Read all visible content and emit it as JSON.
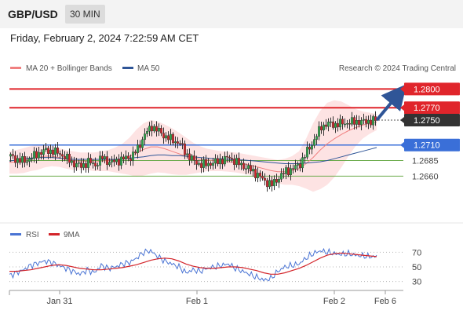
{
  "header": {
    "pair": "GBP/USD",
    "timeframe": "30 MIN",
    "datetime": "Friday, February 2, 2024 7:22:59 AM CET"
  },
  "legend": {
    "ma20_label": "MA 20 + Bollinger Bands",
    "ma50_label": "MA 50",
    "copyright": "Research © 2024 Trading Central",
    "rsi_label": "RSI",
    "ma9_label": "9MA"
  },
  "colors": {
    "resistance": "#e0252b",
    "current": "#333333",
    "support_major": "#3a6fd8",
    "support_minor": "#6aaa4a",
    "ma20": "#f08080",
    "ma50": "#2f5597",
    "band_fill": "#fde3e3",
    "candle_up": "#2ea84a",
    "candle_down": "#d3242a",
    "arrow": "#2f5597",
    "rsi": "#4a74d4",
    "rsi_ma": "#d3242a"
  },
  "chart_data": [
    {
      "type": "candlestick",
      "ylim": [
        1.2615,
        1.2822
      ],
      "x_labels": [
        "Jan 31",
        "Feb 1",
        "Feb 2",
        "Feb 6"
      ],
      "levels": [
        {
          "value": 1.28,
          "label": "1.2800",
          "kind": "resistance"
        },
        {
          "value": 1.277,
          "label": "1.2770",
          "kind": "resistance"
        },
        {
          "value": 1.275,
          "label": "1.2750",
          "kind": "current"
        },
        {
          "value": 1.271,
          "label": "1.2710",
          "kind": "support_major"
        },
        {
          "value": 1.2685,
          "label": "1.2685",
          "kind": "support_minor"
        },
        {
          "value": 1.266,
          "label": "1.2660",
          "kind": "support_minor"
        }
      ],
      "close_path": [
        1.2692,
        1.2686,
        1.2684,
        1.269,
        1.2697,
        1.2701,
        1.27,
        1.2696,
        1.2688,
        1.268,
        1.2676,
        1.2683,
        1.2678,
        1.269,
        1.2682,
        1.2684,
        1.2688,
        1.269,
        1.2704,
        1.2727,
        1.274,
        1.2732,
        1.2723,
        1.2718,
        1.2712,
        1.2694,
        1.2684,
        1.2678,
        1.268,
        1.2682,
        1.2686,
        1.269,
        1.2682,
        1.2676,
        1.267,
        1.2662,
        1.2652,
        1.2646,
        1.2658,
        1.2668,
        1.2672,
        1.268,
        1.27,
        1.2718,
        1.274,
        1.2744,
        1.2743,
        1.2745,
        1.2746,
        1.2748,
        1.2747,
        1.2749,
        1.275
      ],
      "ma20": [
        1.2682,
        1.2683,
        1.2685,
        1.2688,
        1.269,
        1.2692,
        1.2692,
        1.269,
        1.2687,
        1.2685,
        1.2684,
        1.2684,
        1.2683,
        1.2684,
        1.2685,
        1.2686,
        1.2688,
        1.2692,
        1.2697,
        1.2703,
        1.2707,
        1.2707,
        1.2704,
        1.27,
        1.2696,
        1.2692,
        1.2689,
        1.2687,
        1.2686,
        1.2685,
        1.2684,
        1.2683,
        1.2682,
        1.268,
        1.2678,
        1.2675,
        1.2672,
        1.2669,
        1.2667,
        1.2667,
        1.2669,
        1.2672,
        1.268,
        1.269,
        1.2702,
        1.2712,
        1.272,
        1.2727,
        1.2733,
        1.2738,
        1.2742,
        1.2745,
        1.2747
      ],
      "band_upper": [
        1.27,
        1.2702,
        1.2705,
        1.2708,
        1.271,
        1.271,
        1.2708,
        1.2705,
        1.2702,
        1.27,
        1.2698,
        1.2698,
        1.2698,
        1.27,
        1.2702,
        1.2706,
        1.2712,
        1.2722,
        1.2735,
        1.2745,
        1.275,
        1.2748,
        1.2743,
        1.2737,
        1.273,
        1.2722,
        1.2714,
        1.2708,
        1.2704,
        1.2702,
        1.27,
        1.2699,
        1.2698,
        1.2696,
        1.2694,
        1.2692,
        1.269,
        1.2688,
        1.2686,
        1.2688,
        1.2692,
        1.27,
        1.272,
        1.2745,
        1.2765,
        1.2778,
        1.2782,
        1.278,
        1.2774,
        1.2768,
        1.2764,
        1.2762,
        1.276
      ],
      "band_lower": [
        1.2664,
        1.2664,
        1.2665,
        1.2668,
        1.267,
        1.2674,
        1.2676,
        1.2675,
        1.2672,
        1.267,
        1.267,
        1.267,
        1.2668,
        1.2668,
        1.2668,
        1.2666,
        1.2664,
        1.2662,
        1.2659,
        1.2661,
        1.2664,
        1.2666,
        1.2665,
        1.2663,
        1.2662,
        1.2662,
        1.2664,
        1.2666,
        1.2668,
        1.2668,
        1.2668,
        1.2667,
        1.2666,
        1.2664,
        1.2662,
        1.2658,
        1.2654,
        1.265,
        1.2648,
        1.2646,
        1.2646,
        1.2644,
        1.264,
        1.2635,
        1.2639,
        1.2646,
        1.2658,
        1.2674,
        1.2692,
        1.2708,
        1.272,
        1.2728,
        1.2734
      ],
      "ma50": [
        1.2684,
        1.2686,
        1.2688,
        1.2689,
        1.269,
        1.269,
        1.269,
        1.2689,
        1.2688,
        1.2687,
        1.2687,
        1.2687,
        1.2687,
        1.2687,
        1.2687,
        1.2687,
        1.2688,
        1.2689,
        1.269,
        1.2691,
        1.2693,
        1.2694,
        1.2694,
        1.2693,
        1.2693,
        1.2692,
        1.2691,
        1.269,
        1.2689,
        1.2688,
        1.2688,
        1.2687,
        1.2686,
        1.2686,
        1.2685,
        1.2684,
        1.2683,
        1.2682,
        1.2681,
        1.268,
        1.268,
        1.268,
        1.2681,
        1.2682,
        1.2683,
        1.2685,
        1.2688,
        1.2691,
        1.2694,
        1.2697,
        1.27,
        1.2703,
        1.2706
      ],
      "projection": {
        "from": 1.275,
        "to": 1.28
      }
    },
    {
      "type": "line",
      "ylim": [
        20,
        80
      ],
      "yticks": [
        30,
        50,
        70
      ],
      "rsi": [
        38,
        42,
        46,
        52,
        55,
        58,
        56,
        52,
        48,
        44,
        40,
        46,
        42,
        52,
        48,
        50,
        54,
        56,
        62,
        70,
        72,
        64,
        58,
        54,
        50,
        42,
        46,
        44,
        48,
        50,
        52,
        54,
        48,
        44,
        40,
        36,
        32,
        34,
        44,
        50,
        52,
        54,
        62,
        68,
        72,
        70,
        68,
        67,
        68,
        66,
        65,
        64,
        64
      ],
      "rsi_ma": [
        44,
        44,
        45,
        46,
        48,
        50,
        52,
        53,
        52,
        50,
        48,
        47,
        46,
        46,
        47,
        48,
        49,
        51,
        53,
        56,
        59,
        61,
        62,
        61,
        58,
        54,
        51,
        49,
        48,
        48,
        49,
        50,
        50,
        49,
        47,
        45,
        42,
        40,
        40,
        42,
        45,
        48,
        52,
        57,
        62,
        66,
        68,
        69,
        68,
        67,
        66,
        65,
        64
      ]
    }
  ]
}
